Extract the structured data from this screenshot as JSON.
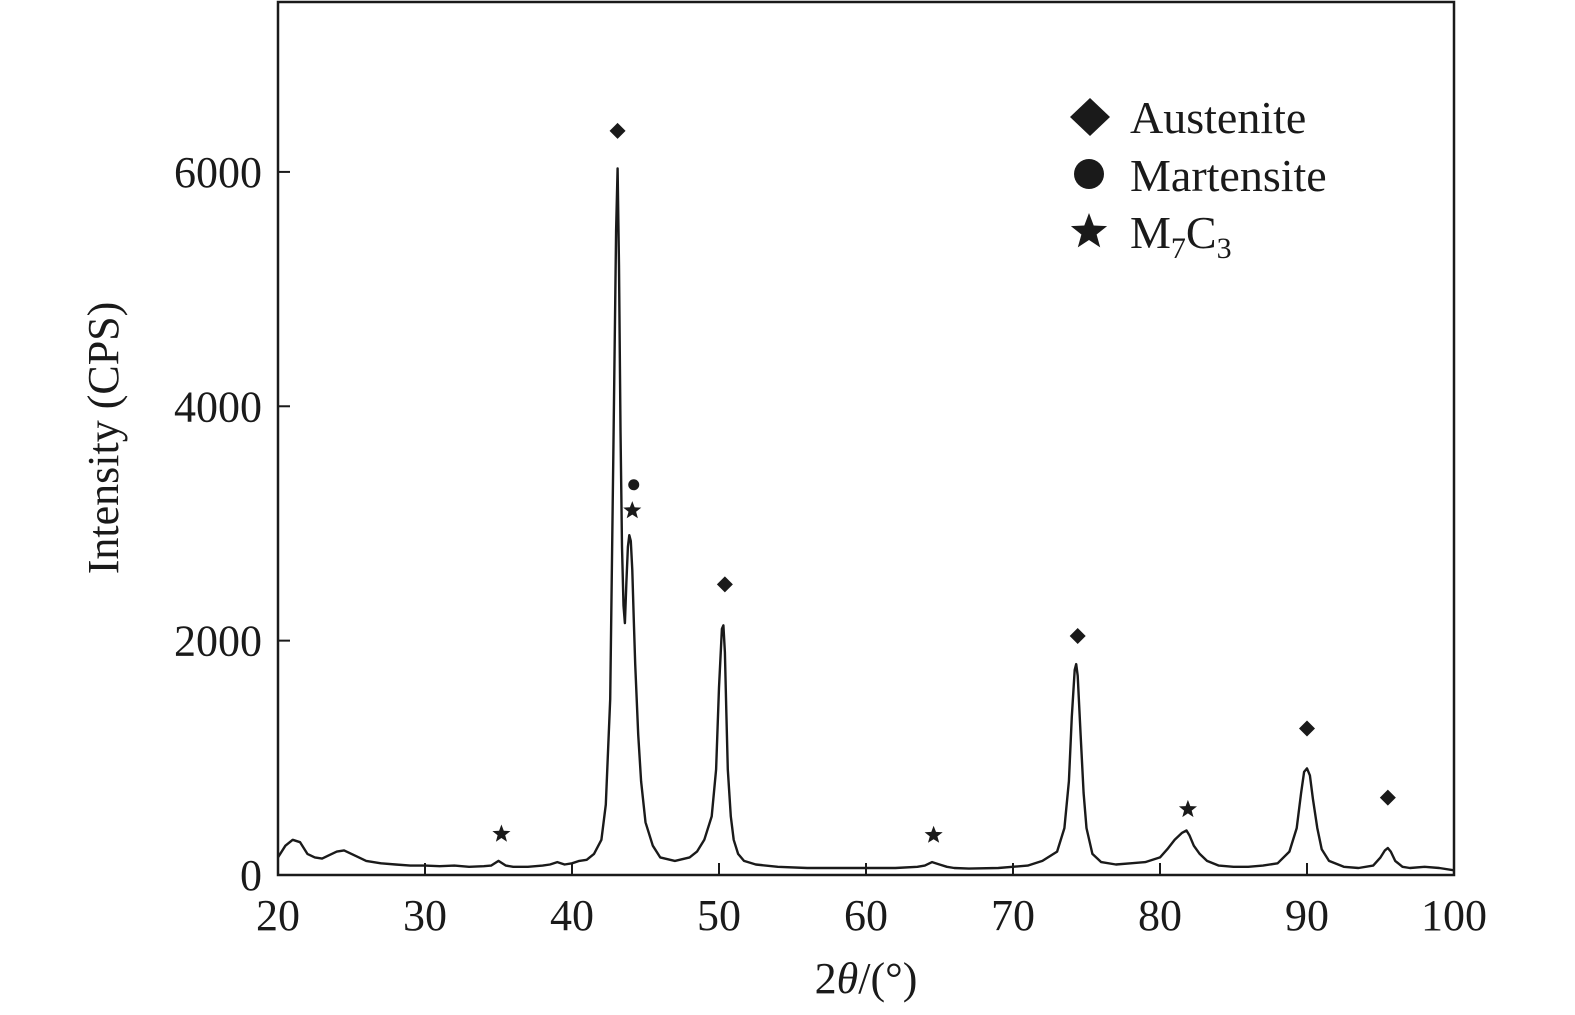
{
  "chart_data": {
    "type": "line",
    "title": "",
    "xlabel_prefix": "2",
    "xlabel_theta": "θ",
    "xlabel_suffix": "/(°)",
    "ylabel": "Intensity (CPS)",
    "xlim": [
      20,
      100
    ],
    "ylim": [
      0,
      7450
    ],
    "xticks": [
      20,
      30,
      40,
      50,
      60,
      70,
      80,
      90,
      100
    ],
    "yticks": [
      0,
      2000,
      4000,
      6000
    ],
    "grid": false,
    "legend_position": "top-right",
    "series": [
      {
        "color": "#1a1a1a",
        "x": [
          20,
          20.5,
          21,
          21.5,
          22,
          22.5,
          23,
          23.5,
          24,
          24.5,
          25,
          25.5,
          26,
          27,
          28,
          29,
          30,
          31,
          32,
          33,
          34,
          34.5,
          35,
          35.5,
          36,
          37,
          38,
          38.5,
          39,
          39.5,
          40,
          40.5,
          41,
          41.5,
          42,
          42.3,
          42.6,
          42.8,
          43.0,
          43.1,
          43.2,
          43.3,
          43.4,
          43.5,
          43.6,
          43.7,
          43.8,
          43.9,
          44.0,
          44.1,
          44.2,
          44.3,
          44.5,
          44.7,
          45.0,
          45.5,
          46,
          47,
          48,
          48.5,
          49,
          49.5,
          49.8,
          50.0,
          50.2,
          50.3,
          50.4,
          50.5,
          50.6,
          50.8,
          51.0,
          51.3,
          51.7,
          52.5,
          54,
          56,
          58,
          60,
          62,
          63.5,
          64,
          64.5,
          65,
          65.5,
          66,
          67,
          69,
          71,
          72,
          73,
          73.5,
          73.8,
          74.0,
          74.2,
          74.3,
          74.4,
          74.6,
          74.8,
          75.0,
          75.4,
          76,
          77,
          78,
          79,
          80,
          80.5,
          81,
          81.5,
          81.8,
          82.0,
          82.3,
          82.7,
          83.2,
          84,
          85,
          86,
          87,
          88,
          88.8,
          89.3,
          89.6,
          89.8,
          90.0,
          90.2,
          90.4,
          90.7,
          91.0,
          91.5,
          92.5,
          93.5,
          94.5,
          95.0,
          95.3,
          95.5,
          95.7,
          96.0,
          96.5,
          97,
          98,
          99,
          100
        ],
        "y": [
          150,
          250,
          300,
          280,
          180,
          150,
          140,
          170,
          200,
          210,
          180,
          150,
          120,
          100,
          90,
          80,
          80,
          75,
          80,
          70,
          75,
          80,
          120,
          80,
          70,
          70,
          80,
          90,
          110,
          90,
          100,
          120,
          130,
          180,
          300,
          600,
          1500,
          3500,
          5500,
          6030,
          5200,
          3800,
          2800,
          2300,
          2150,
          2500,
          2800,
          2900,
          2850,
          2600,
          2200,
          1800,
          1200,
          800,
          450,
          250,
          150,
          120,
          150,
          200,
          300,
          500,
          900,
          1600,
          2100,
          2130,
          1900,
          1400,
          900,
          500,
          300,
          180,
          120,
          90,
          70,
          60,
          60,
          60,
          60,
          70,
          80,
          110,
          90,
          70,
          60,
          55,
          60,
          80,
          120,
          200,
          400,
          800,
          1350,
          1750,
          1800,
          1700,
          1200,
          700,
          400,
          180,
          110,
          90,
          100,
          110,
          150,
          220,
          300,
          360,
          380,
          340,
          250,
          180,
          120,
          80,
          70,
          70,
          80,
          100,
          200,
          400,
          700,
          880,
          910,
          850,
          650,
          400,
          220,
          120,
          70,
          60,
          80,
          150,
          210,
          230,
          200,
          120,
          70,
          60,
          70,
          60,
          40
        ]
      }
    ],
    "legend": [
      {
        "marker": "diamond",
        "label": "Austenite"
      },
      {
        "marker": "circle",
        "label": "Martensite"
      },
      {
        "marker": "star",
        "label_main": "M",
        "sub1": "7",
        "label_mid": "C",
        "sub2": "3"
      }
    ],
    "peak_markers": [
      {
        "marker": "diamond",
        "x": 43.1,
        "y": 6350
      },
      {
        "marker": "circle",
        "x": 44.2,
        "y": 3330
      },
      {
        "marker": "star",
        "x": 44.1,
        "y": 3110
      },
      {
        "marker": "diamond",
        "x": 50.4,
        "y": 2480
      },
      {
        "marker": "diamond",
        "x": 74.4,
        "y": 2040
      },
      {
        "marker": "diamond",
        "x": 90.0,
        "y": 1250
      },
      {
        "marker": "diamond",
        "x": 95.5,
        "y": 660
      },
      {
        "marker": "star",
        "x": 35.2,
        "y": 350
      },
      {
        "marker": "star",
        "x": 64.6,
        "y": 340
      },
      {
        "marker": "star",
        "x": 81.9,
        "y": 560
      }
    ]
  }
}
